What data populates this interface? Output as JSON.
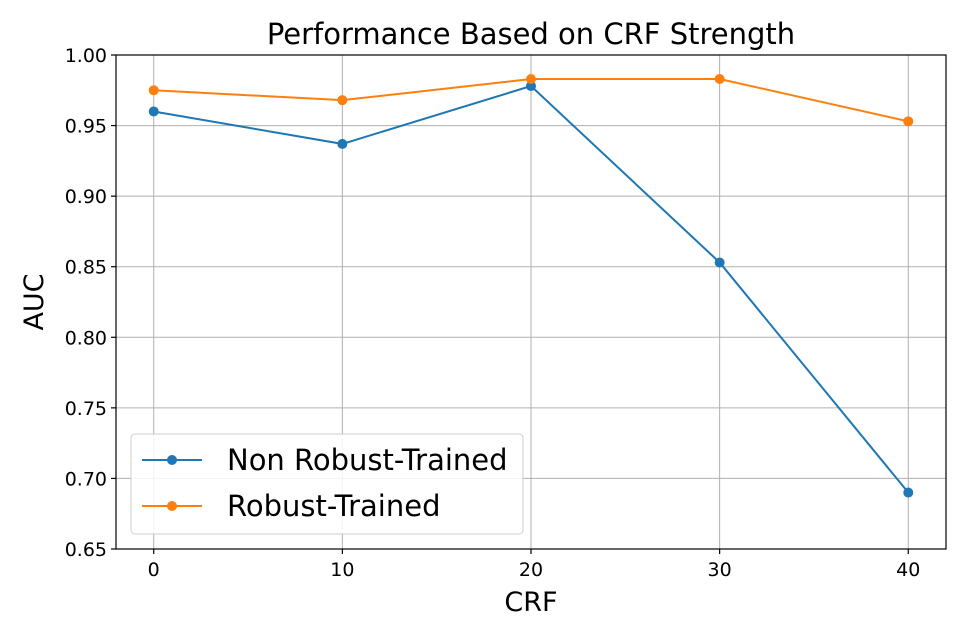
{
  "chart_data": {
    "type": "line",
    "title": "Performance Based on CRF Strength",
    "xlabel": "CRF",
    "ylabel": "AUC",
    "x": [
      0,
      10,
      20,
      30,
      40
    ],
    "xlim": [
      -2,
      42
    ],
    "ylim": [
      0.65,
      1.0
    ],
    "xticks": [
      "0",
      "10",
      "20",
      "30",
      "40"
    ],
    "yticks": [
      "0.65",
      "0.70",
      "0.75",
      "0.80",
      "0.85",
      "0.90",
      "0.95",
      "1.00"
    ],
    "grid": true,
    "legend_position": "lower-left",
    "series": [
      {
        "name": "Non Robust-Trained",
        "color": "#1f77b4",
        "values": [
          0.96,
          0.937,
          0.978,
          0.853,
          0.69
        ]
      },
      {
        "name": "Robust-Trained",
        "color": "#ff7f0e",
        "values": [
          0.975,
          0.968,
          0.983,
          0.983,
          0.953
        ]
      }
    ]
  }
}
